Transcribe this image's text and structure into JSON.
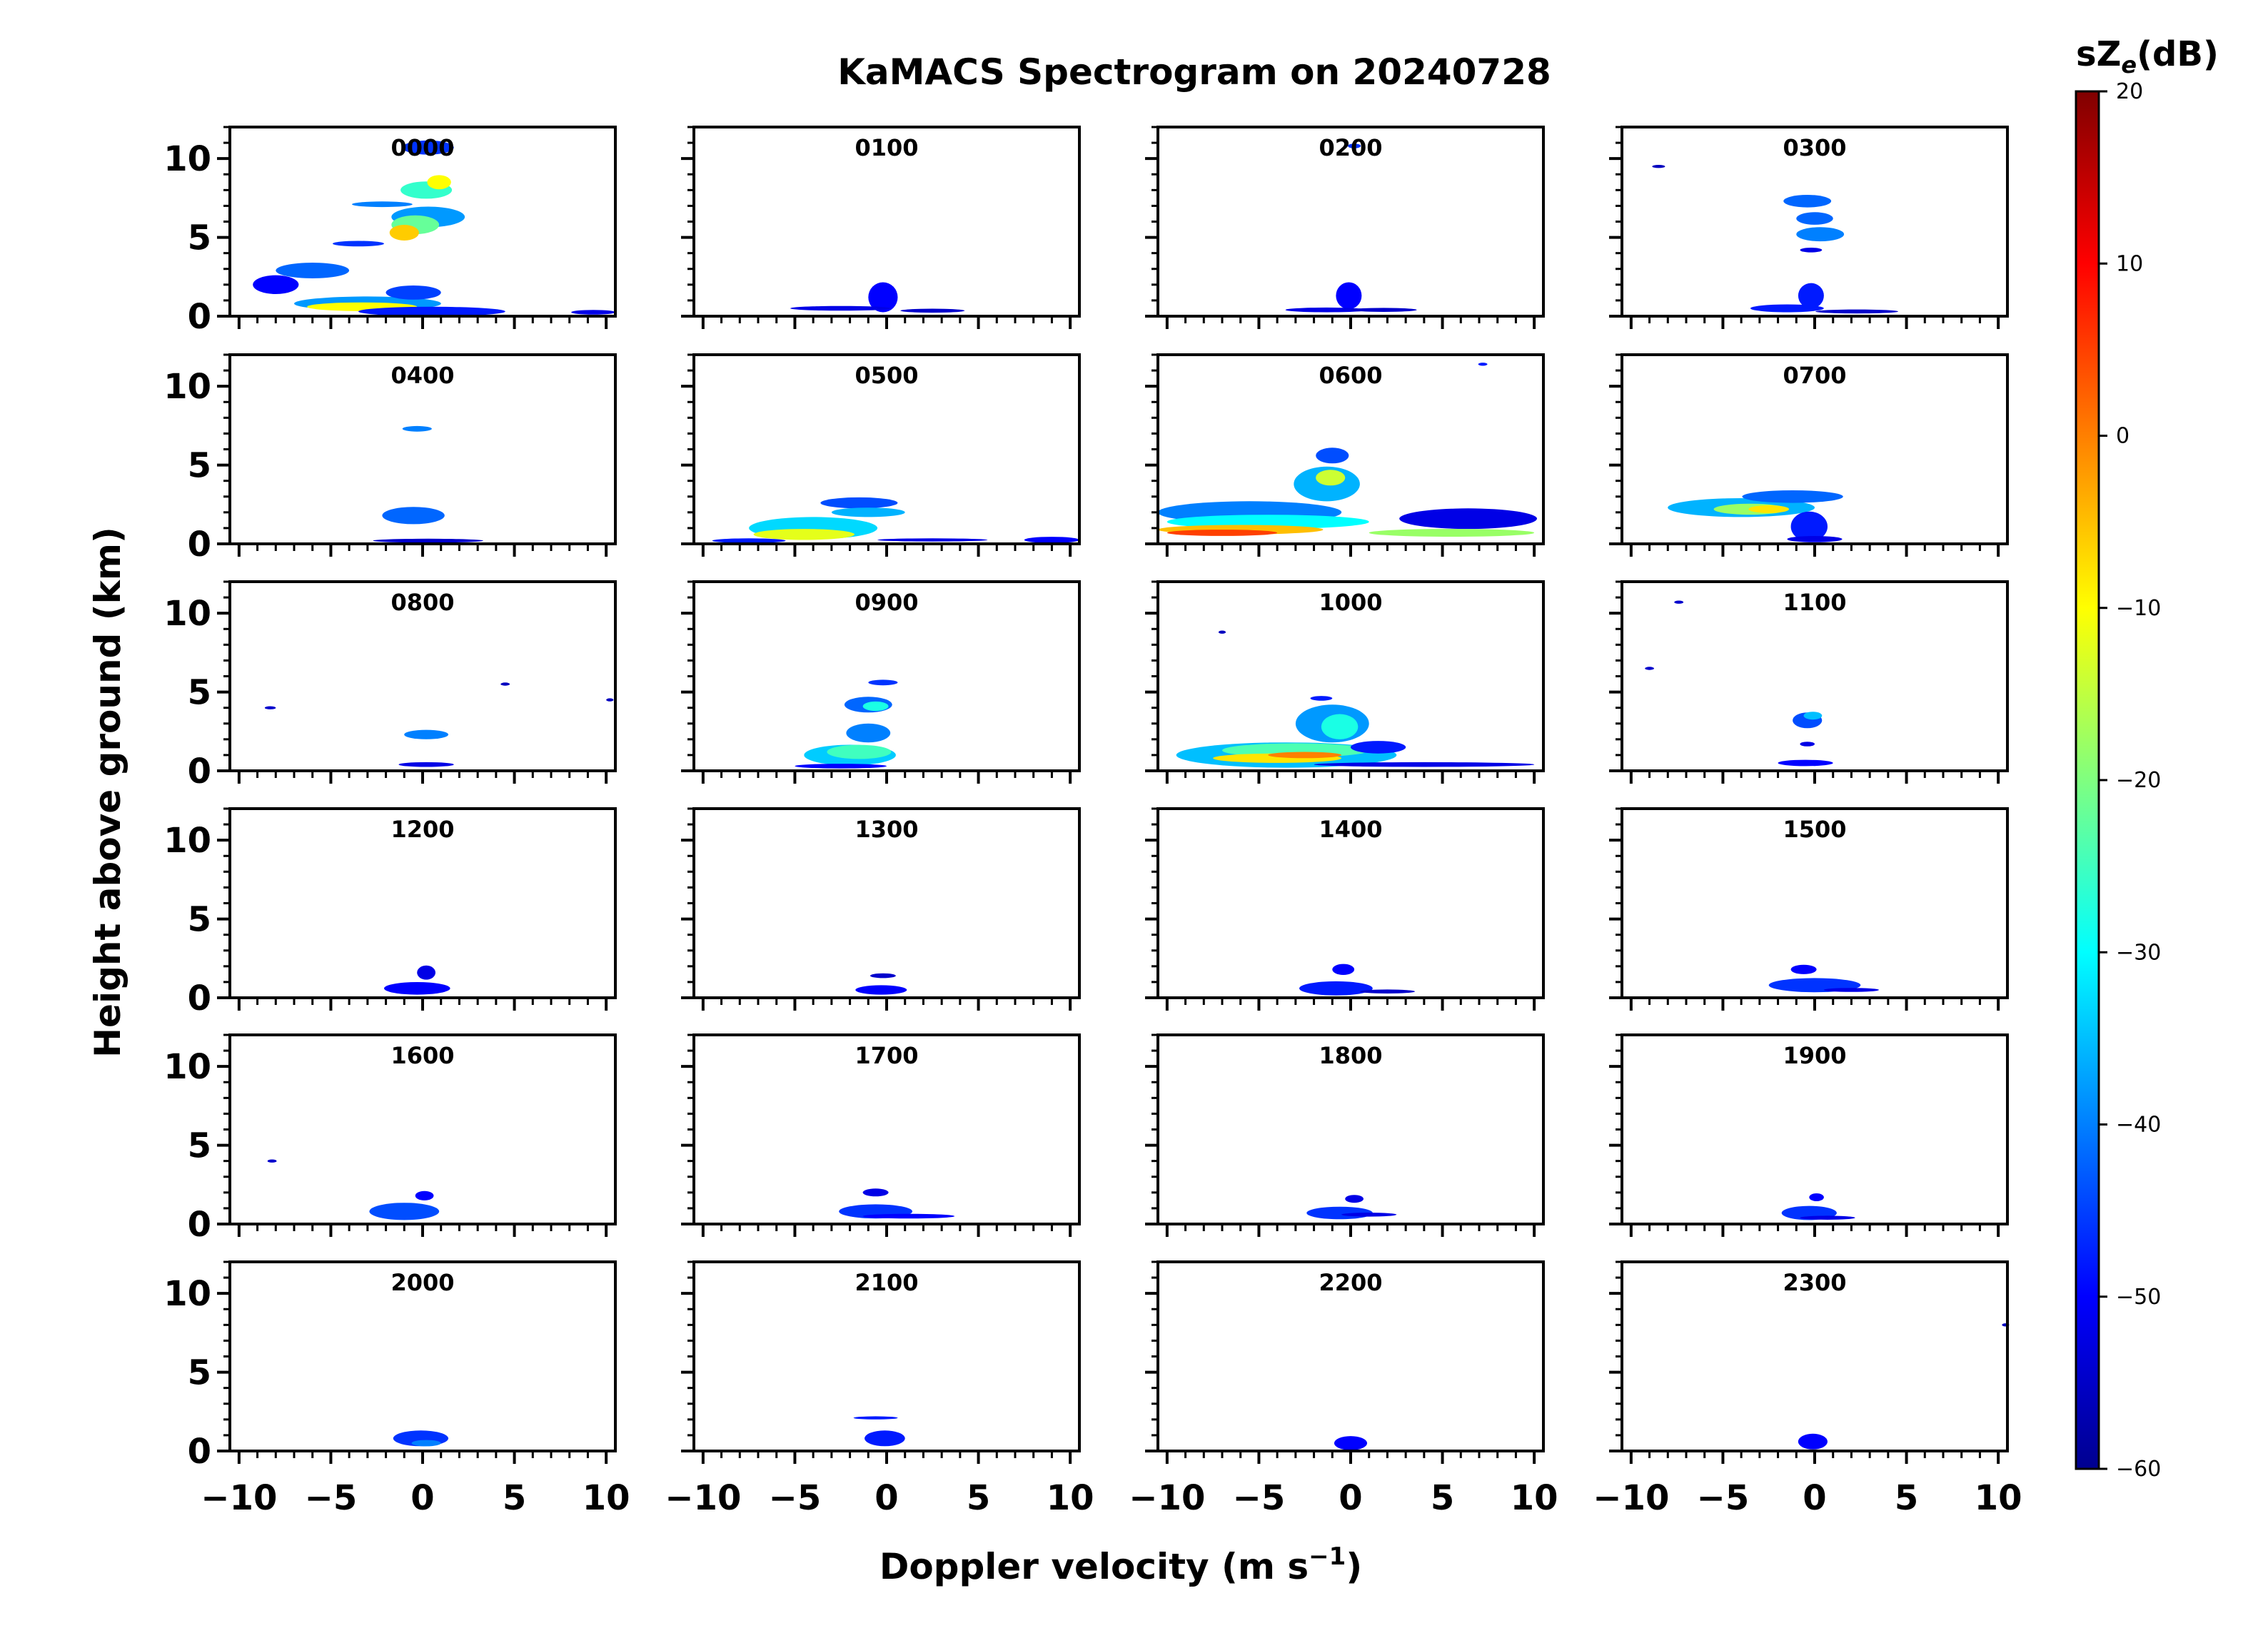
{
  "chart_data": {
    "type": "heatmap",
    "title": "KaMACS Spectrogram on 20240728",
    "xlabel": "Doppler velocity (m s⁻¹)",
    "xlabel_main": "Doppler velocity (m s",
    "xlabel_sup": "−1",
    "xlabel_close": ")",
    "ylabel": "Height above ground (km)",
    "xlim": [
      -10.5,
      10.5
    ],
    "ylim": [
      0,
      12
    ],
    "x_ticks": [
      -10,
      -5,
      0,
      5,
      10
    ],
    "x_tick_labels": [
      "−10",
      "−5",
      "0",
      "5",
      "10"
    ],
    "y_ticks": [
      0,
      5,
      10
    ],
    "y_tick_labels": [
      "0",
      "5",
      "10"
    ],
    "grid": false,
    "colorbar": {
      "label": "sZe(dB)",
      "label_main": "sZ",
      "label_sub": "e",
      "label_unit": "(dB)",
      "min": -60,
      "max": 20,
      "ticks": [
        20,
        10,
        0,
        -10,
        -20,
        -30,
        -40,
        -50,
        -60
      ],
      "tick_labels": [
        "20",
        "10",
        "0",
        "−10",
        "−20",
        "−30",
        "−40",
        "−50",
        "−60"
      ],
      "colormap": "jet"
    },
    "panels": [
      {
        "label": "0000",
        "features": [
          [
            0.3,
            6.3,
            4.0,
            1.3,
            -38
          ],
          [
            -0.4,
            5.8,
            2.6,
            1.2,
            -22
          ],
          [
            -1.0,
            5.3,
            1.6,
            1.0,
            -6
          ],
          [
            0.2,
            8.0,
            2.8,
            1.1,
            -26
          ],
          [
            0.9,
            8.5,
            1.3,
            0.9,
            -10
          ],
          [
            0.3,
            10.7,
            2.8,
            0.9,
            -46
          ],
          [
            -2.2,
            7.1,
            3.3,
            0.35,
            -40
          ],
          [
            -3.5,
            4.6,
            2.8,
            0.35,
            -46
          ],
          [
            -6.0,
            2.9,
            4.0,
            1.0,
            -42
          ],
          [
            -8.0,
            2.0,
            2.5,
            1.2,
            -50
          ],
          [
            -3.0,
            0.8,
            8.0,
            0.9,
            -38
          ],
          [
            -3.3,
            0.6,
            6.0,
            0.55,
            -10
          ],
          [
            -0.5,
            1.5,
            3.0,
            0.9,
            -45
          ],
          [
            0.5,
            0.3,
            8.0,
            0.6,
            -48
          ],
          [
            9.3,
            0.25,
            2.4,
            0.3,
            -52
          ]
        ]
      },
      {
        "label": "0100",
        "features": [
          [
            -0.2,
            1.2,
            1.6,
            1.9,
            -50
          ],
          [
            -2.5,
            0.5,
            5.5,
            0.3,
            -52
          ],
          [
            2.5,
            0.35,
            3.5,
            0.25,
            -54
          ]
        ]
      },
      {
        "label": "0200",
        "features": [
          [
            -0.1,
            1.3,
            1.4,
            1.7,
            -50
          ],
          [
            -1.3,
            0.4,
            4.5,
            0.3,
            -52
          ],
          [
            1.8,
            0.4,
            3.6,
            0.25,
            -54
          ],
          [
            0.2,
            10.8,
            0.7,
            0.3,
            -46
          ]
        ]
      },
      {
        "label": "0300",
        "features": [
          [
            -0.4,
            7.3,
            2.6,
            0.8,
            -42
          ],
          [
            0.0,
            6.2,
            2.0,
            0.8,
            -42
          ],
          [
            0.3,
            5.2,
            2.6,
            0.9,
            -40
          ],
          [
            -0.2,
            1.3,
            1.4,
            1.6,
            -48
          ],
          [
            -1.5,
            0.5,
            4.0,
            0.5,
            -48
          ],
          [
            2.3,
            0.3,
            4.5,
            0.25,
            -54
          ],
          [
            -8.5,
            9.5,
            0.7,
            0.2,
            -55
          ],
          [
            -0.2,
            4.2,
            1.2,
            0.3,
            -52
          ]
        ]
      },
      {
        "label": "0400",
        "features": [
          [
            -0.3,
            7.3,
            1.6,
            0.35,
            -40
          ],
          [
            -0.5,
            1.8,
            3.4,
            1.1,
            -42
          ],
          [
            0.3,
            0.2,
            6.0,
            0.25,
            -54
          ]
        ]
      },
      {
        "label": "0500",
        "features": [
          [
            -4.0,
            1.0,
            7.0,
            1.4,
            -33
          ],
          [
            -4.5,
            0.6,
            5.5,
            0.7,
            -12
          ],
          [
            -1.5,
            2.6,
            4.2,
            0.7,
            -44
          ],
          [
            -1.0,
            2.0,
            4.0,
            0.6,
            -36
          ],
          [
            -7.5,
            0.2,
            4.0,
            0.3,
            -48
          ],
          [
            2.5,
            0.25,
            6.0,
            0.2,
            -52
          ],
          [
            9.0,
            0.25,
            3.0,
            0.4,
            -50
          ]
        ]
      },
      {
        "label": "0600",
        "features": [
          [
            -5.5,
            2.0,
            10.0,
            1.4,
            -40
          ],
          [
            -4.5,
            1.4,
            11.0,
            0.9,
            -30
          ],
          [
            -6.0,
            0.9,
            9.0,
            0.6,
            -5
          ],
          [
            -7.0,
            0.7,
            6.0,
            0.4,
            5
          ],
          [
            -1.3,
            3.8,
            3.6,
            2.2,
            -36
          ],
          [
            -1.1,
            4.2,
            1.6,
            1.0,
            -14
          ],
          [
            -1.0,
            5.6,
            1.8,
            1.0,
            -44
          ],
          [
            6.4,
            1.6,
            7.5,
            1.3,
            -52
          ],
          [
            5.5,
            0.7,
            9.0,
            0.5,
            -18
          ],
          [
            7.2,
            11.4,
            0.5,
            0.2,
            -48
          ]
        ]
      },
      {
        "label": "0700",
        "features": [
          [
            -4.0,
            2.3,
            8.0,
            1.2,
            -36
          ],
          [
            -3.5,
            2.2,
            4.0,
            0.7,
            -18
          ],
          [
            -2.5,
            2.2,
            2.2,
            0.5,
            -8
          ],
          [
            -1.2,
            3.0,
            5.5,
            0.8,
            -42
          ],
          [
            -0.3,
            1.1,
            2.0,
            1.9,
            -48
          ],
          [
            0.0,
            0.3,
            3.0,
            0.4,
            -52
          ]
        ]
      },
      {
        "label": "0800",
        "features": [
          [
            0.2,
            2.3,
            2.4,
            0.6,
            -40
          ],
          [
            0.2,
            0.4,
            3.0,
            0.3,
            -52
          ],
          [
            -8.3,
            4.0,
            0.6,
            0.2,
            -54
          ],
          [
            4.5,
            5.5,
            0.5,
            0.2,
            -55
          ],
          [
            10.2,
            4.5,
            0.4,
            0.2,
            -55
          ]
        ]
      },
      {
        "label": "0900",
        "features": [
          [
            -2.0,
            1.0,
            5.0,
            1.3,
            -34
          ],
          [
            -1.5,
            1.2,
            3.5,
            0.9,
            -25
          ],
          [
            -1.0,
            2.4,
            2.4,
            1.2,
            -40
          ],
          [
            -1.0,
            4.2,
            2.6,
            1.0,
            -42
          ],
          [
            -0.6,
            4.1,
            1.4,
            0.6,
            -28
          ],
          [
            -0.2,
            5.6,
            1.6,
            0.35,
            -46
          ],
          [
            -2.5,
            0.3,
            5.0,
            0.3,
            -50
          ]
        ]
      },
      {
        "label": "1000",
        "features": [
          [
            -3.5,
            1.0,
            12.0,
            1.6,
            -35
          ],
          [
            -3.0,
            1.3,
            8.0,
            0.9,
            -24
          ],
          [
            -4.0,
            0.8,
            7.0,
            0.6,
            -8
          ],
          [
            -2.5,
            1.0,
            4.0,
            0.4,
            0
          ],
          [
            -1.0,
            3.0,
            4.0,
            2.4,
            -38
          ],
          [
            -0.6,
            2.8,
            2.0,
            1.6,
            -28
          ],
          [
            1.5,
            1.5,
            3.0,
            0.8,
            -48
          ],
          [
            4.0,
            0.4,
            12.0,
            0.3,
            -52
          ],
          [
            -1.6,
            4.6,
            1.2,
            0.3,
            -48
          ],
          [
            -7.0,
            8.8,
            0.4,
            0.2,
            -55
          ]
        ]
      },
      {
        "label": "1100",
        "features": [
          [
            -0.4,
            3.2,
            1.6,
            1.0,
            -44
          ],
          [
            -0.1,
            3.5,
            1.0,
            0.5,
            -35
          ],
          [
            -0.5,
            0.5,
            3.0,
            0.4,
            -50
          ],
          [
            -9.0,
            6.5,
            0.5,
            0.2,
            -54
          ],
          [
            -7.4,
            10.7,
            0.5,
            0.2,
            -54
          ],
          [
            -0.4,
            1.7,
            0.8,
            0.3,
            -52
          ]
        ]
      },
      {
        "label": "1200",
        "features": [
          [
            -0.3,
            0.6,
            3.6,
            0.8,
            -50
          ],
          [
            0.2,
            1.6,
            1.0,
            0.9,
            -52
          ]
        ]
      },
      {
        "label": "1300",
        "features": [
          [
            -0.3,
            0.5,
            2.8,
            0.6,
            -50
          ],
          [
            -0.2,
            1.4,
            1.4,
            0.3,
            -54
          ]
        ]
      },
      {
        "label": "1400",
        "features": [
          [
            -0.8,
            0.6,
            4.0,
            0.9,
            -48
          ],
          [
            -0.4,
            1.8,
            1.2,
            0.7,
            -50
          ],
          [
            2.0,
            0.4,
            3.0,
            0.25,
            -54
          ]
        ]
      },
      {
        "label": "1500",
        "features": [
          [
            0.0,
            0.8,
            5.0,
            0.9,
            -46
          ],
          [
            2.0,
            0.5,
            3.0,
            0.25,
            -52
          ],
          [
            -0.6,
            1.8,
            1.4,
            0.6,
            -50
          ]
        ]
      },
      {
        "label": "1600",
        "features": [
          [
            -1.0,
            0.8,
            3.8,
            1.1,
            -44
          ],
          [
            0.1,
            1.8,
            1.0,
            0.6,
            -50
          ],
          [
            -8.2,
            4.0,
            0.5,
            0.2,
            -54
          ]
        ]
      },
      {
        "label": "1700",
        "features": [
          [
            -0.6,
            0.8,
            4.0,
            0.9,
            -46
          ],
          [
            1.2,
            0.5,
            5.0,
            0.3,
            -50
          ],
          [
            -0.6,
            2.0,
            1.4,
            0.5,
            -52
          ]
        ]
      },
      {
        "label": "1800",
        "features": [
          [
            -0.6,
            0.7,
            3.6,
            0.8,
            -46
          ],
          [
            1.0,
            0.6,
            3.0,
            0.25,
            -52
          ],
          [
            0.2,
            1.6,
            1.0,
            0.5,
            -52
          ]
        ]
      },
      {
        "label": "1900",
        "features": [
          [
            -0.3,
            0.7,
            3.0,
            0.9,
            -46
          ],
          [
            0.7,
            0.4,
            3.0,
            0.25,
            -52
          ],
          [
            0.1,
            1.7,
            0.8,
            0.5,
            -50
          ]
        ]
      },
      {
        "label": "2000",
        "features": [
          [
            -0.1,
            0.8,
            3.0,
            1.0,
            -46
          ],
          [
            0.2,
            0.5,
            1.6,
            0.4,
            -40
          ]
        ]
      },
      {
        "label": "2100",
        "features": [
          [
            -0.1,
            0.8,
            2.2,
            1.0,
            -48
          ],
          [
            -0.6,
            2.1,
            2.4,
            0.2,
            -48
          ]
        ]
      },
      {
        "label": "2200",
        "features": [
          [
            0.0,
            0.5,
            1.8,
            0.9,
            -50
          ]
        ]
      },
      {
        "label": "2300",
        "features": [
          [
            -0.1,
            0.6,
            1.6,
            1.0,
            -50
          ],
          [
            10.4,
            8.0,
            0.4,
            0.2,
            -55
          ]
        ]
      }
    ]
  }
}
